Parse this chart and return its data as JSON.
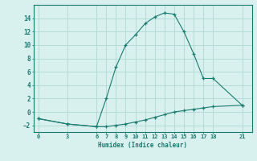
{
  "xlabel": "Humidex (Indice chaleur)",
  "x_ticks": [
    0,
    3,
    6,
    7,
    8,
    9,
    10,
    11,
    12,
    13,
    14,
    15,
    16,
    17,
    18,
    21
  ],
  "line1_x": [
    0,
    3,
    6,
    7,
    8,
    9,
    10,
    11,
    12,
    13,
    14,
    15,
    16,
    17,
    18,
    21
  ],
  "line1_y": [
    -1,
    -1.8,
    -2.2,
    2,
    6.7,
    10,
    11.5,
    13.2,
    14.2,
    14.8,
    14.6,
    12,
    8.7,
    5,
    5,
    1
  ],
  "line2_x": [
    0,
    3,
    6,
    7,
    8,
    9,
    10,
    11,
    12,
    13,
    14,
    15,
    16,
    17,
    18,
    21
  ],
  "line2_y": [
    -1,
    -1.8,
    -2.2,
    -2.2,
    -2.0,
    -1.8,
    -1.5,
    -1.2,
    -0.8,
    -0.4,
    0,
    0.2,
    0.4,
    0.6,
    0.8,
    1
  ],
  "line_color": "#1a7a6e",
  "bg_color": "#d8f0ee",
  "grid_color": "#b0d8d4",
  "ylim": [
    -3,
    16
  ],
  "xlim": [
    -0.5,
    22
  ],
  "yticks": [
    -2,
    0,
    2,
    4,
    6,
    8,
    10,
    12,
    14
  ]
}
